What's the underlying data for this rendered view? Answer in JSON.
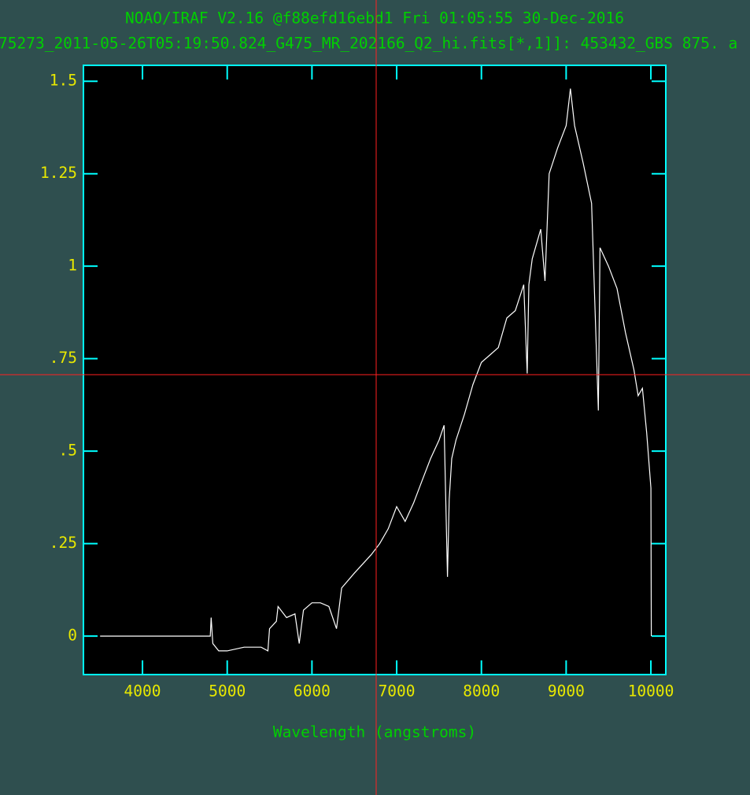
{
  "chart_data": {
    "type": "line",
    "title": "NOAO/IRAF V2.16 @f88efd16ebd1 Fri 01:05:55 30-Dec-2016",
    "subtitle": "75273_2011-05-26T05:19:50.824_G475_MR_202166_Q2_hi.fits[*,1]]: 453432_GBS 875. a",
    "xlabel": "Wavelength (angstroms)",
    "x": [
      3500,
      4800,
      4810,
      4830,
      4900,
      5000,
      5200,
      5400,
      5480,
      5500,
      5580,
      5600,
      5700,
      5800,
      5850,
      5900,
      6000,
      6100,
      6200,
      6290,
      6350,
      6500,
      6700,
      6800,
      6900,
      7000,
      7100,
      7200,
      7300,
      7400,
      7500,
      7560,
      7600,
      7620,
      7650,
      7700,
      7800,
      7900,
      8000,
      8100,
      8200,
      8300,
      8400,
      8500,
      8540,
      8560,
      8600,
      8700,
      8750,
      8800,
      8900,
      9000,
      9050,
      9100,
      9200,
      9300,
      9380,
      9400,
      9500,
      9600,
      9700,
      9800,
      9850,
      9900,
      9950,
      10000,
      10005
    ],
    "values": [
      0,
      0,
      0.05,
      -0.02,
      -0.04,
      -0.04,
      -0.03,
      -0.03,
      -0.04,
      0.02,
      0.04,
      0.08,
      0.05,
      0.06,
      -0.02,
      0.07,
      0.09,
      0.09,
      0.08,
      0.02,
      0.13,
      0.17,
      0.22,
      0.25,
      0.29,
      0.35,
      0.31,
      0.36,
      0.42,
      0.48,
      0.53,
      0.57,
      0.16,
      0.37,
      0.48,
      0.53,
      0.6,
      0.68,
      0.74,
      0.76,
      0.78,
      0.86,
      0.88,
      0.95,
      0.71,
      0.95,
      1.02,
      1.1,
      0.96,
      1.25,
      1.32,
      1.38,
      1.48,
      1.38,
      1.28,
      1.17,
      0.61,
      1.05,
      1.0,
      0.94,
      0.82,
      0.72,
      0.65,
      0.67,
      0.55,
      0.4,
      0
    ],
    "color": "#ffffff",
    "xlim": [
      3303,
      10176
    ],
    "ylim": [
      -0.104,
      1.543
    ],
    "xticks": [
      4000,
      5000,
      6000,
      7000,
      8000,
      9000,
      10000
    ],
    "yticks": [
      0,
      {
        "value": 0.25,
        "label": ".25"
      },
      {
        "value": 0.5,
        "label": ".5"
      },
      {
        "value": 0.75,
        "label": ".75"
      },
      1,
      1.25,
      1.5
    ]
  }
}
